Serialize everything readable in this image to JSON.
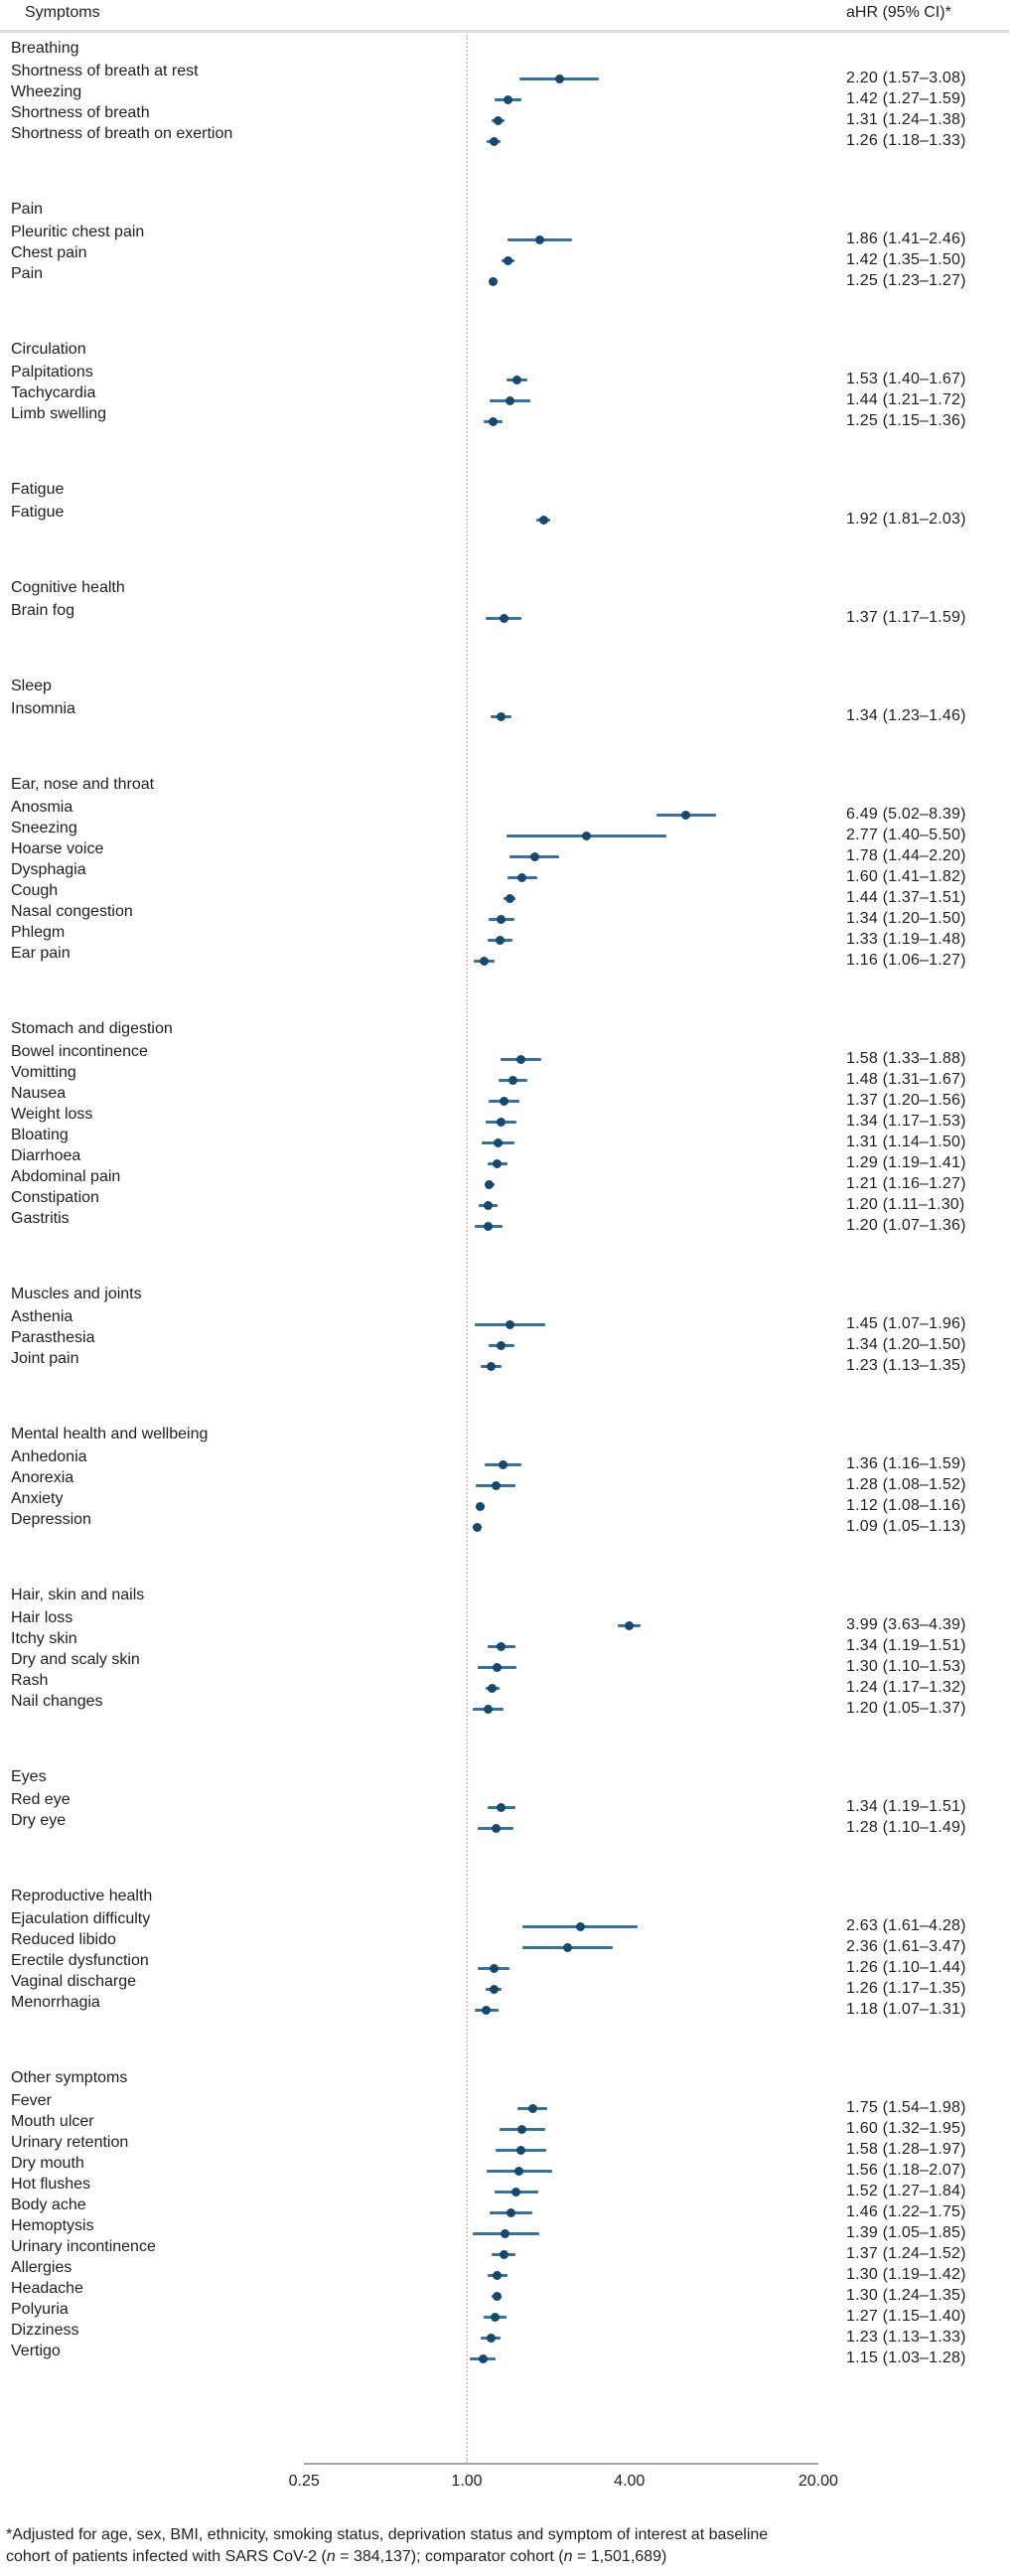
{
  "page": {
    "left_header": "Symptoms",
    "right_header": "aHR (95% CI)*",
    "footnote_line1": "*Adjusted for age, sex, BMI, ethnicity, smoking status, deprivation status and symptom of interest at baseline",
    "footnote_line2": [
      {
        "text": "cohort of patients infected with SARS CoV-2 (",
        "italic": false
      },
      {
        "text": "n",
        "italic": true
      },
      {
        "text": " = 384,137); comparator cohort (",
        "italic": false
      },
      {
        "text": "n",
        "italic": true
      },
      {
        "text": " = 1,501,689)",
        "italic": false
      }
    ]
  },
  "chart_data": {
    "type": "scatter",
    "variant": "forest-plot",
    "title": "",
    "xlabel": "",
    "ylabel": "",
    "x_scale": "log",
    "xlim": [
      0.25,
      20
    ],
    "x_ticks": [
      0.25,
      1.0,
      4.0,
      20.0
    ],
    "x_tick_labels": [
      "0.25",
      "1.00",
      "4.00",
      "20.00"
    ],
    "reference_line_x": 1.0,
    "grid": false,
    "legend": "none",
    "colors": {
      "point": "#16486e",
      "ci_line": "#38719c",
      "reference_line": "#f3bdb3",
      "axis_line": "#a3a3a3",
      "separator": "#dcdcdc",
      "text": "#1f1f1f"
    },
    "groups": [
      {
        "name": "Breathing",
        "items": [
          {
            "label": "Shortness of breath at rest",
            "hr": 2.2,
            "ci_low": 1.57,
            "ci_high": 3.08,
            "display": "2.20 (1.57–3.08)"
          },
          {
            "label": "Wheezing",
            "hr": 1.42,
            "ci_low": 1.27,
            "ci_high": 1.59,
            "display": "1.42 (1.27–1.59)"
          },
          {
            "label": "Shortness of breath",
            "hr": 1.31,
            "ci_low": 1.24,
            "ci_high": 1.38,
            "display": "1.31 (1.24–1.38)"
          },
          {
            "label": "Shortness of breath on exertion",
            "hr": 1.26,
            "ci_low": 1.18,
            "ci_high": 1.33,
            "display": "1.26 (1.18–1.33)"
          }
        ]
      },
      {
        "name": "Pain",
        "items": [
          {
            "label": "Pleuritic chest pain",
            "hr": 1.86,
            "ci_low": 1.41,
            "ci_high": 2.46,
            "display": "1.86 (1.41–2.46)"
          },
          {
            "label": "Chest pain",
            "hr": 1.42,
            "ci_low": 1.35,
            "ci_high": 1.5,
            "display": "1.42 (1.35–1.50)"
          },
          {
            "label": "Pain",
            "hr": 1.25,
            "ci_low": 1.23,
            "ci_high": 1.27,
            "display": "1.25 (1.23–1.27)"
          }
        ]
      },
      {
        "name": "Circulation",
        "items": [
          {
            "label": "Palpitations",
            "hr": 1.53,
            "ci_low": 1.4,
            "ci_high": 1.67,
            "display": "1.53 (1.40–1.67)"
          },
          {
            "label": "Tachycardia",
            "hr": 1.44,
            "ci_low": 1.21,
            "ci_high": 1.72,
            "display": "1.44 (1.21–1.72)"
          },
          {
            "label": "Limb swelling",
            "hr": 1.25,
            "ci_low": 1.15,
            "ci_high": 1.36,
            "display": "1.25 (1.15–1.36)"
          }
        ]
      },
      {
        "name": "Fatigue",
        "items": [
          {
            "label": "Fatigue",
            "hr": 1.92,
            "ci_low": 1.81,
            "ci_high": 2.03,
            "display": "1.92 (1.81–2.03)"
          }
        ]
      },
      {
        "name": "Cognitive health",
        "items": [
          {
            "label": "Brain fog",
            "hr": 1.37,
            "ci_low": 1.17,
            "ci_high": 1.59,
            "display": "1.37 (1.17–1.59)"
          }
        ]
      },
      {
        "name": "Sleep",
        "items": [
          {
            "label": "Insomnia",
            "hr": 1.34,
            "ci_low": 1.23,
            "ci_high": 1.46,
            "display": "1.34 (1.23–1.46)"
          }
        ]
      },
      {
        "name": "Ear, nose and throat",
        "items": [
          {
            "label": "Anosmia",
            "hr": 6.49,
            "ci_low": 5.02,
            "ci_high": 8.39,
            "display": "6.49 (5.02–8.39)"
          },
          {
            "label": "Sneezing",
            "hr": 2.77,
            "ci_low": 1.4,
            "ci_high": 5.5,
            "display": "2.77 (1.40–5.50)"
          },
          {
            "label": "Hoarse voice",
            "hr": 1.78,
            "ci_low": 1.44,
            "ci_high": 2.2,
            "display": "1.78 (1.44–2.20)"
          },
          {
            "label": "Dysphagia",
            "hr": 1.6,
            "ci_low": 1.41,
            "ci_high": 1.82,
            "display": "1.60 (1.41–1.82)"
          },
          {
            "label": "Cough",
            "hr": 1.44,
            "ci_low": 1.37,
            "ci_high": 1.51,
            "display": "1.44 (1.37–1.51)"
          },
          {
            "label": "Nasal congestion",
            "hr": 1.34,
            "ci_low": 1.2,
            "ci_high": 1.5,
            "display": "1.34 (1.20–1.50)"
          },
          {
            "label": "Phlegm",
            "hr": 1.33,
            "ci_low": 1.19,
            "ci_high": 1.48,
            "display": "1.33 (1.19–1.48)"
          },
          {
            "label": "Ear pain",
            "hr": 1.16,
            "ci_low": 1.06,
            "ci_high": 1.27,
            "display": "1.16 (1.06–1.27)"
          }
        ]
      },
      {
        "name": "Stomach and digestion",
        "items": [
          {
            "label": "Bowel incontinence",
            "hr": 1.58,
            "ci_low": 1.33,
            "ci_high": 1.88,
            "display": "1.58 (1.33–1.88)"
          },
          {
            "label": "Vomitting",
            "hr": 1.48,
            "ci_low": 1.31,
            "ci_high": 1.67,
            "display": "1.48 (1.31–1.67)"
          },
          {
            "label": "Nausea",
            "hr": 1.37,
            "ci_low": 1.2,
            "ci_high": 1.56,
            "display": "1.37 (1.20–1.56)"
          },
          {
            "label": "Weight loss",
            "hr": 1.34,
            "ci_low": 1.17,
            "ci_high": 1.53,
            "display": "1.34 (1.17–1.53)"
          },
          {
            "label": "Bloating",
            "hr": 1.31,
            "ci_low": 1.14,
            "ci_high": 1.5,
            "display": "1.31 (1.14–1.50)"
          },
          {
            "label": "Diarrhoea",
            "hr": 1.29,
            "ci_low": 1.19,
            "ci_high": 1.41,
            "display": "1.29 (1.19–1.41)"
          },
          {
            "label": "Abdominal pain",
            "hr": 1.21,
            "ci_low": 1.16,
            "ci_high": 1.27,
            "display": "1.21 (1.16–1.27)"
          },
          {
            "label": "Constipation",
            "hr": 1.2,
            "ci_low": 1.11,
            "ci_high": 1.3,
            "display": "1.20 (1.11–1.30)"
          },
          {
            "label": "Gastritis",
            "hr": 1.2,
            "ci_low": 1.07,
            "ci_high": 1.36,
            "display": "1.20 (1.07–1.36)"
          }
        ]
      },
      {
        "name": "Muscles and joints",
        "items": [
          {
            "label": "Asthenia",
            "hr": 1.45,
            "ci_low": 1.07,
            "ci_high": 1.96,
            "display": "1.45 (1.07–1.96)"
          },
          {
            "label": "Parasthesia",
            "hr": 1.34,
            "ci_low": 1.2,
            "ci_high": 1.5,
            "display": "1.34 (1.20–1.50)"
          },
          {
            "label": "Joint pain",
            "hr": 1.23,
            "ci_low": 1.13,
            "ci_high": 1.35,
            "display": "1.23 (1.13–1.35)"
          }
        ]
      },
      {
        "name": "Mental health and wellbeing",
        "items": [
          {
            "label": "Anhedonia",
            "hr": 1.36,
            "ci_low": 1.16,
            "ci_high": 1.59,
            "display": "1.36 (1.16–1.59)"
          },
          {
            "label": "Anorexia",
            "hr": 1.28,
            "ci_low": 1.08,
            "ci_high": 1.52,
            "display": "1.28 (1.08–1.52)"
          },
          {
            "label": "Anxiety",
            "hr": 1.12,
            "ci_low": 1.08,
            "ci_high": 1.16,
            "display": "1.12 (1.08–1.16)"
          },
          {
            "label": "Depression",
            "hr": 1.09,
            "ci_low": 1.05,
            "ci_high": 1.13,
            "display": "1.09 (1.05–1.13)"
          }
        ]
      },
      {
        "name": "Hair, skin and nails",
        "items": [
          {
            "label": "Hair loss",
            "hr": 3.99,
            "ci_low": 3.63,
            "ci_high": 4.39,
            "display": "3.99 (3.63–4.39)"
          },
          {
            "label": "Itchy skin",
            "hr": 1.34,
            "ci_low": 1.19,
            "ci_high": 1.51,
            "display": "1.34 (1.19–1.51)"
          },
          {
            "label": "Dry and scaly skin",
            "hr": 1.3,
            "ci_low": 1.1,
            "ci_high": 1.53,
            "display": "1.30 (1.10–1.53)"
          },
          {
            "label": "Rash",
            "hr": 1.24,
            "ci_low": 1.17,
            "ci_high": 1.32,
            "display": "1.24 (1.17–1.32)"
          },
          {
            "label": "Nail changes",
            "hr": 1.2,
            "ci_low": 1.05,
            "ci_high": 1.37,
            "display": "1.20 (1.05–1.37)"
          }
        ]
      },
      {
        "name": "Eyes",
        "items": [
          {
            "label": "Red eye",
            "hr": 1.34,
            "ci_low": 1.19,
            "ci_high": 1.51,
            "display": "1.34 (1.19–1.51)"
          },
          {
            "label": "Dry eye",
            "hr": 1.28,
            "ci_low": 1.1,
            "ci_high": 1.49,
            "display": "1.28 (1.10–1.49)"
          }
        ]
      },
      {
        "name": "Reproductive health",
        "items": [
          {
            "label": "Ejaculation difficulty",
            "hr": 2.63,
            "ci_low": 1.61,
            "ci_high": 4.28,
            "display": "2.63 (1.61–4.28)"
          },
          {
            "label": "Reduced libido",
            "hr": 2.36,
            "ci_low": 1.61,
            "ci_high": 3.47,
            "display": "2.36 (1.61–3.47)"
          },
          {
            "label": "Erectile dysfunction",
            "hr": 1.26,
            "ci_low": 1.1,
            "ci_high": 1.44,
            "display": "1.26 (1.10–1.44)"
          },
          {
            "label": "Vaginal discharge",
            "hr": 1.26,
            "ci_low": 1.17,
            "ci_high": 1.35,
            "display": "1.26 (1.17–1.35)"
          },
          {
            "label": "Menorrhagia",
            "hr": 1.18,
            "ci_low": 1.07,
            "ci_high": 1.31,
            "display": "1.18 (1.07–1.31)"
          }
        ]
      },
      {
        "name": "Other symptoms",
        "items": [
          {
            "label": "Fever",
            "hr": 1.75,
            "ci_low": 1.54,
            "ci_high": 1.98,
            "display": "1.75 (1.54–1.98)"
          },
          {
            "label": "Mouth ulcer",
            "hr": 1.6,
            "ci_low": 1.32,
            "ci_high": 1.95,
            "display": "1.60 (1.32–1.95)"
          },
          {
            "label": "Urinary retention",
            "hr": 1.58,
            "ci_low": 1.28,
            "ci_high": 1.97,
            "display": "1.58 (1.28–1.97)"
          },
          {
            "label": "Dry mouth",
            "hr": 1.56,
            "ci_low": 1.18,
            "ci_high": 2.07,
            "display": "1.56 (1.18–2.07)"
          },
          {
            "label": "Hot flushes",
            "hr": 1.52,
            "ci_low": 1.27,
            "ci_high": 1.84,
            "display": "1.52 (1.27–1.84)"
          },
          {
            "label": "Body ache",
            "hr": 1.46,
            "ci_low": 1.22,
            "ci_high": 1.75,
            "display": "1.46 (1.22–1.75)"
          },
          {
            "label": "Hemoptysis",
            "hr": 1.39,
            "ci_low": 1.05,
            "ci_high": 1.85,
            "display": "1.39 (1.05–1.85)"
          },
          {
            "label": "Urinary incontinence",
            "hr": 1.37,
            "ci_low": 1.24,
            "ci_high": 1.52,
            "display": "1.37 (1.24–1.52)"
          },
          {
            "label": "Allergies",
            "hr": 1.3,
            "ci_low": 1.19,
            "ci_high": 1.42,
            "display": "1.30 (1.19–1.42)"
          },
          {
            "label": "Headache",
            "hr": 1.3,
            "ci_low": 1.24,
            "ci_high": 1.35,
            "display": "1.30 (1.24–1.35)"
          },
          {
            "label": "Polyuria",
            "hr": 1.27,
            "ci_low": 1.15,
            "ci_high": 1.4,
            "display": "1.27 (1.15–1.40)"
          },
          {
            "label": "Dizziness",
            "hr": 1.23,
            "ci_low": 1.13,
            "ci_high": 1.33,
            "display": "1.23 (1.13–1.33)"
          },
          {
            "label": "Vertigo",
            "hr": 1.15,
            "ci_low": 1.03,
            "ci_high": 1.28,
            "display": "1.15 (1.03–1.28)"
          }
        ]
      }
    ]
  }
}
